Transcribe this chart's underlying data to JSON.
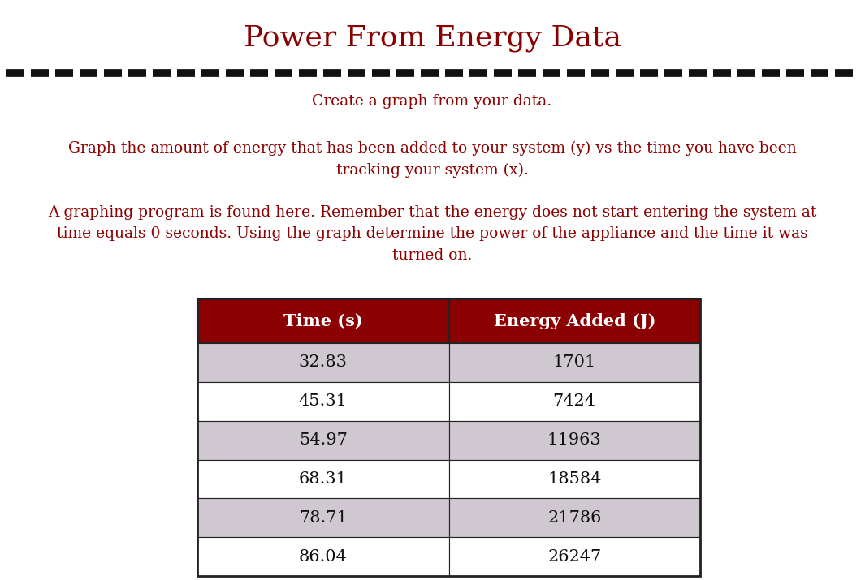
{
  "title": "Power From Energy Data",
  "title_color": "#8B0000",
  "title_fontsize": 26,
  "background_color": "#ffffff",
  "dashed_line_color": "#111111",
  "paragraph1": "Create a graph from your data.",
  "paragraph2_line1": "Graph the amount of energy that has been added to your system (y) vs the time you have been",
  "paragraph2_line2": "tracking your system (x).",
  "paragraph3_line1_before": "A graphing program is found ",
  "paragraph3_line1_link": "here",
  "paragraph3_line1_after": ". Remember that the energy does not start entering the system at",
  "paragraph3_line2": "time equals 0 seconds. Using the graph determine the power of the appliance and the time it was",
  "paragraph3_line3": "turned on.",
  "text_color": "#8B0000",
  "link_color": "#4444aa",
  "text_fontsize": 13.5,
  "table_header_bg": "#8B0000",
  "table_header_text": "#ffffff",
  "table_row_odd_bg": "#D0C8D0",
  "table_row_even_bg": "#ffffff",
  "table_border_color": "#222222",
  "table_text_color": "#111111",
  "table_header_col1": "Time (s)",
  "table_header_col2": "Energy Added (J)",
  "table_header_fontsize": 15,
  "table_data_fontsize": 15,
  "time_values": [
    "32.83",
    "45.31",
    "54.97",
    "68.31",
    "78.71",
    "86.04"
  ],
  "energy_values": [
    "1701",
    "7424",
    "11963",
    "18584",
    "21786",
    "26247"
  ]
}
